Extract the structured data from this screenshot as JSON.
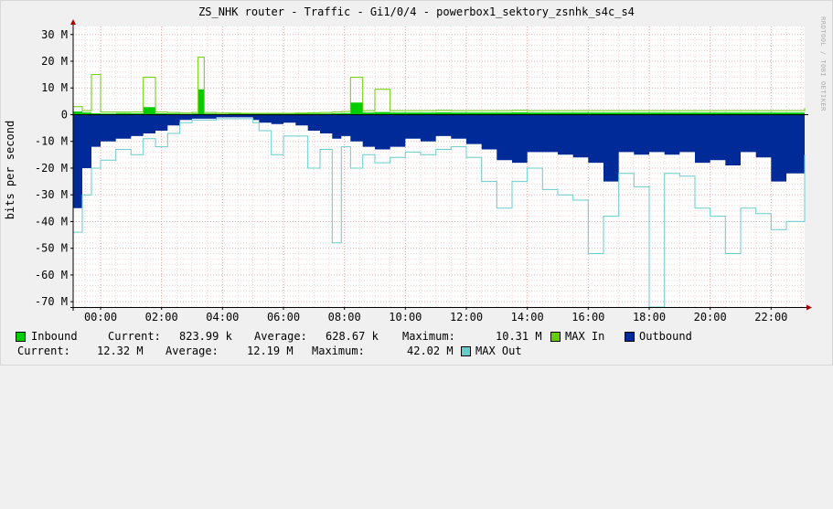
{
  "colors": {
    "background": "#f0f0f0",
    "plot_background": "#ffffff",
    "grid": "#e8b0b0",
    "axis": "#000000",
    "inbound": "#00cc00",
    "max_in": "#66cc00",
    "outbound": "#002a97",
    "max_out": "#66cccc"
  },
  "watermark": "RRDTOOL / TOBI OETIKER",
  "legend": {
    "inbound": {
      "name": "Inbound",
      "current_label": "Current:",
      "current": "823.99 k",
      "average_label": "Average:",
      "average": "628.67 k",
      "maximum_label": "Maximum:",
      "maximum": "10.31 M"
    },
    "max_in": {
      "name": "MAX In"
    },
    "outbound": {
      "name": "Outbound",
      "current_label": "Current:",
      "current": "12.32 M",
      "average_label": "Average:",
      "average": "12.19 M",
      "maximum_label": "Maximum:",
      "maximum": "42.02 M"
    },
    "max_out": {
      "name": "MAX Out"
    }
  },
  "chart_data": {
    "type": "area",
    "title": "ZS_NHK router - Traffic - Gi1/0/4 - powerbox1_sektory_zsnhk_s4c_s4",
    "ylabel": "bits per second",
    "ylim": [
      -72,
      33
    ],
    "y_unit": "M",
    "y_ticks": [
      30,
      20,
      10,
      0,
      -10,
      -20,
      -30,
      -40,
      -50,
      -60,
      -70
    ],
    "y_tick_labels": [
      "30 M",
      "20 M",
      "10 M",
      "0",
      "-10 M",
      "-20 M",
      "-30 M",
      "-40 M",
      "-50 M",
      "-60 M",
      "-70 M"
    ],
    "xlim": [
      -0.9,
      23.1
    ],
    "x_ticks": [
      0,
      2,
      4,
      6,
      8,
      10,
      12,
      14,
      16,
      18,
      20,
      22
    ],
    "x_tick_labels": [
      "00:00",
      "02:00",
      "04:00",
      "06:00",
      "08:00",
      "10:00",
      "12:00",
      "14:00",
      "16:00",
      "18:00",
      "20:00",
      "22:00"
    ],
    "x": [
      -0.9,
      -0.6,
      -0.3,
      0.0,
      0.5,
      1.0,
      1.4,
      1.8,
      2.2,
      2.6,
      3.0,
      3.2,
      3.4,
      3.8,
      4.2,
      4.6,
      5.0,
      5.2,
      5.6,
      6.0,
      6.4,
      6.8,
      7.2,
      7.6,
      7.9,
      8.2,
      8.6,
      9.0,
      9.5,
      10.0,
      10.5,
      11.0,
      11.5,
      12.0,
      12.5,
      13.0,
      13.5,
      14.0,
      14.5,
      15.0,
      15.5,
      16.0,
      16.5,
      17.0,
      17.5,
      18.0,
      18.5,
      19.0,
      19.5,
      20.0,
      20.5,
      21.0,
      21.5,
      22.0,
      22.5,
      23.1
    ],
    "series": [
      {
        "name": "Inbound",
        "values": [
          1.2,
          0.8,
          0.5,
          0.4,
          0.6,
          0.5,
          2.8,
          0.5,
          0.4,
          0.3,
          0.4,
          9.5,
          0.4,
          0.3,
          0.4,
          0.3,
          0.3,
          0.3,
          0.3,
          0.3,
          0.4,
          0.4,
          0.4,
          0.5,
          0.6,
          4.5,
          0.8,
          1.0,
          0.8,
          0.8,
          0.8,
          0.9,
          0.8,
          0.8,
          0.8,
          0.8,
          0.9,
          0.8,
          0.8,
          0.8,
          0.8,
          0.8,
          0.8,
          0.8,
          0.8,
          0.8,
          0.8,
          0.8,
          0.8,
          0.8,
          0.8,
          0.8,
          0.8,
          0.8,
          0.8,
          0.8
        ]
      },
      {
        "name": "MAX In",
        "values": [
          3.0,
          1.5,
          15.0,
          1.0,
          1.0,
          1.0,
          14.0,
          1.0,
          0.8,
          0.6,
          0.8,
          21.5,
          0.8,
          0.6,
          0.6,
          0.5,
          0.5,
          0.5,
          0.5,
          0.5,
          0.6,
          0.7,
          0.8,
          1.0,
          1.2,
          14.0,
          1.5,
          9.5,
          1.5,
          1.5,
          1.5,
          1.6,
          1.5,
          1.5,
          1.5,
          1.5,
          1.6,
          1.5,
          1.5,
          1.5,
          1.5,
          1.5,
          1.5,
          1.5,
          1.5,
          1.5,
          1.5,
          1.5,
          1.5,
          1.5,
          1.5,
          1.5,
          1.5,
          1.5,
          1.5,
          2.5
        ]
      },
      {
        "name": "Outbound",
        "values": [
          -35.0,
          -20.0,
          -12.0,
          -10.0,
          -9.0,
          -8.0,
          -7.0,
          -6.0,
          -4.0,
          -2.0,
          -1.5,
          -1.5,
          -1.5,
          -1.0,
          -1.0,
          -1.0,
          -2.0,
          -3.0,
          -3.5,
          -3.0,
          -4.0,
          -6.0,
          -7.0,
          -9.0,
          -8.0,
          -10.0,
          -12.0,
          -13.0,
          -12.0,
          -9.0,
          -10.0,
          -8.0,
          -9.0,
          -11.0,
          -13.0,
          -17.0,
          -18.0,
          -14.0,
          -14.0,
          -15.0,
          -16.0,
          -18.0,
          -25.0,
          -14.0,
          -15.0,
          -14.0,
          -15.0,
          -14.0,
          -18.0,
          -17.0,
          -19.0,
          -14.0,
          -16.0,
          -25.0,
          -22.0,
          -12.0
        ]
      },
      {
        "name": "MAX Out",
        "values": [
          -44.0,
          -30.0,
          -20.0,
          -17.0,
          -13.0,
          -15.0,
          -9.0,
          -12.0,
          -7.0,
          -3.0,
          -2.0,
          -2.0,
          -2.0,
          -1.5,
          -1.5,
          -1.5,
          -3.0,
          -6.0,
          -15.0,
          -8.0,
          -8.0,
          -20.0,
          -13.0,
          -48.0,
          -12.0,
          -20.0,
          -15.0,
          -18.0,
          -16.0,
          -14.0,
          -15.0,
          -13.0,
          -12.0,
          -16.0,
          -25.0,
          -35.0,
          -25.0,
          -20.0,
          -28.0,
          -30.0,
          -32.0,
          -52.0,
          -38.0,
          -22.0,
          -27.0,
          -72.0,
          -22.0,
          -23.0,
          -35.0,
          -38.0,
          -52.0,
          -35.0,
          -37.0,
          -43.0,
          -40.0,
          -15.0
        ]
      }
    ]
  }
}
